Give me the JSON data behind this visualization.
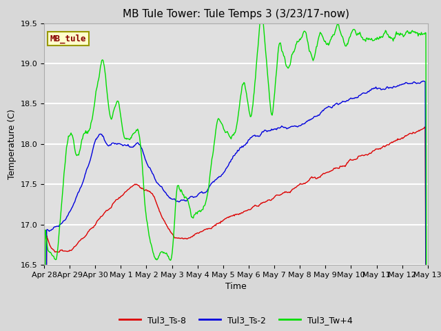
{
  "title": "MB Tule Tower: Tule Temps 3 (3/23/17-now)",
  "xlabel": "Time",
  "ylabel": "Temperature (C)",
  "ylim": [
    16.5,
    19.5
  ],
  "xlim": [
    0,
    15
  ],
  "x_tick_labels": [
    "Apr 28",
    "Apr 29",
    "Apr 30",
    "May 1",
    "May 2",
    "May 3",
    "May 4",
    "May 5",
    "May 6",
    "May 7",
    "May 8",
    "May 9",
    "May 10",
    "May 11",
    "May 12",
    "May 13"
  ],
  "x_tick_positions": [
    0,
    1,
    2,
    3,
    4,
    5,
    6,
    7,
    8,
    9,
    10,
    11,
    12,
    13,
    14,
    15
  ],
  "ytick_positions": [
    16.5,
    17.0,
    17.5,
    18.0,
    18.5,
    19.0,
    19.5
  ],
  "legend_label": "MB_tule",
  "legend_bg": "#ffffcc",
  "legend_edge": "#999900",
  "legend_text_color": "#880000",
  "series_labels": [
    "Tul3_Ts-8",
    "Tul3_Ts-2",
    "Tul3_Tw+4"
  ],
  "series_colors": [
    "#dd0000",
    "#0000dd",
    "#00dd00"
  ],
  "figure_bg": "#d8d8d8",
  "plot_bg": "#e0e0e0",
  "title_fontsize": 11,
  "axis_fontsize": 9,
  "tick_fontsize": 8,
  "legend_fontsize": 9
}
